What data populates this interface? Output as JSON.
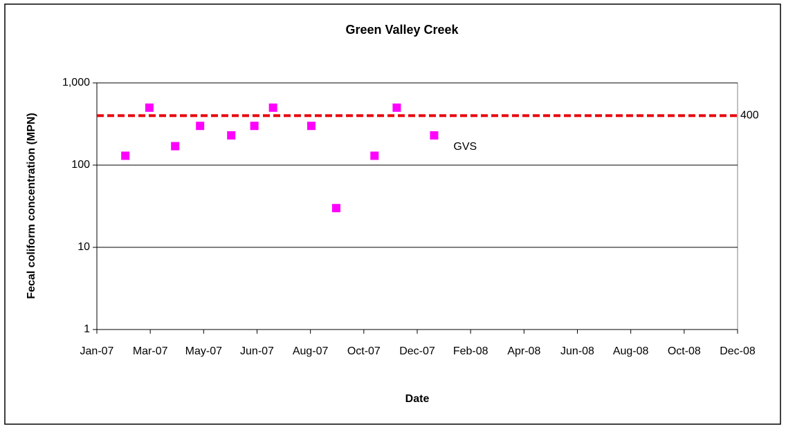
{
  "chart_data": {
    "type": "scatter",
    "title": "Green Valley Creek",
    "x_label": "Date",
    "y_label": "Fecal coliform concentration (MPN)",
    "log_y": true,
    "grid": true,
    "xlim": [
      "2007-01-01",
      "2008-12-21"
    ],
    "xticks": [
      {
        "value": "2007-01-01",
        "label": "Jan-07"
      },
      {
        "value": "2007-03-02",
        "label": "Mar-07"
      },
      {
        "value": "2007-05-01",
        "label": "May-07"
      },
      {
        "value": "2007-06-30",
        "label": "Jun-07"
      },
      {
        "value": "2007-08-29",
        "label": "Aug-07"
      },
      {
        "value": "2007-10-28",
        "label": "Oct-07"
      },
      {
        "value": "2007-12-27",
        "label": "Dec-07"
      },
      {
        "value": "2008-02-25",
        "label": "Feb-08"
      },
      {
        "value": "2008-04-25",
        "label": "Apr-08"
      },
      {
        "value": "2008-06-24",
        "label": "Jun-08"
      },
      {
        "value": "2008-08-23",
        "label": "Aug-08"
      },
      {
        "value": "2008-10-22",
        "label": "Oct-08"
      },
      {
        "value": "2008-12-21",
        "label": "Dec-08"
      }
    ],
    "ylim": [
      1,
      1000
    ],
    "yticks": [
      1,
      10,
      100,
      {
        "value": 1000,
        "label": "1,000"
      }
    ],
    "series": [
      {
        "name": "GVS",
        "color": "#ff00ff",
        "x": [
          "2007-02-02",
          "2007-03-01",
          "2007-03-30",
          "2007-04-27",
          "2007-06-01",
          "2007-06-27",
          "2007-07-18",
          "2007-08-30",
          "2007-09-27",
          "2007-11-09",
          "2007-12-04",
          "2008-01-15"
        ],
        "values": [
          130,
          500,
          170,
          300,
          230,
          300,
          500,
          300,
          30,
          130,
          500,
          230
        ]
      }
    ],
    "threshold": {
      "value": 400,
      "color": "#e8000b"
    }
  }
}
